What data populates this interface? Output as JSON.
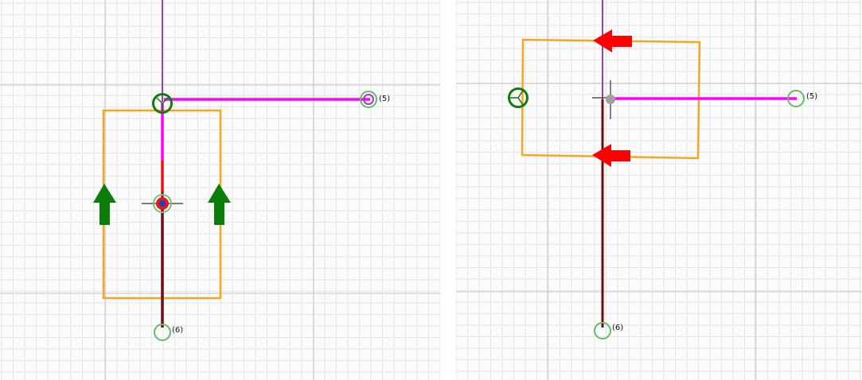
{
  "colors": {
    "grid_minor": "#e6e6e6",
    "grid_major": "#c4c4c4",
    "frame": "#f6a623",
    "member_magenta": "#ff00ff",
    "member_red": "#ee1111",
    "member_dark": "#6b0f0f",
    "axis_purple": "#9b3fb5",
    "node_green": "#137a13",
    "node_light_green": "#66bb6a",
    "arrow_green": "#0b7d0b",
    "arrow_red": "#ff0000",
    "node_red": "#e11a1a",
    "node_blue": "#1f3fbf",
    "node_gray": "#a0a0a0"
  },
  "left_view": {
    "nodes": [
      {
        "id": "node-5",
        "label": "(5)"
      },
      {
        "id": "node-6",
        "label": "(6)"
      }
    ],
    "load_arrows": [
      {
        "direction": "up",
        "icon": "arrow-up-icon"
      },
      {
        "direction": "up",
        "icon": "arrow-up-icon"
      }
    ]
  },
  "right_view": {
    "nodes": [
      {
        "id": "node-5",
        "label": "(5)"
      },
      {
        "id": "node-6",
        "label": "(6)"
      }
    ],
    "load_arrows": [
      {
        "direction": "left",
        "icon": "arrow-left-icon"
      },
      {
        "direction": "left",
        "icon": "arrow-left-icon"
      }
    ]
  }
}
